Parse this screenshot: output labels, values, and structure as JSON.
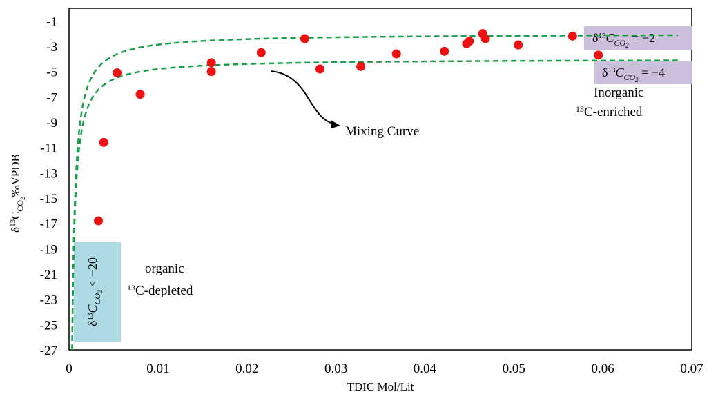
{
  "chart_data": {
    "type": "scatter",
    "xlabel": "TDIC Mol/Lit",
    "ylabel": "δ13CCO2‰VPDB",
    "ylabel_parts": {
      "delta": "δ",
      "mass": "13",
      "c": "C",
      "sub": "CO",
      "sub2": "2",
      "unit": "‰VPDB"
    },
    "xlim": [
      0,
      0.07
    ],
    "ylim": [
      -27,
      0
    ],
    "x_ticks": [
      0,
      0.01,
      0.02,
      0.03,
      0.04,
      0.05,
      0.06,
      0.07
    ],
    "x_tick_labels": [
      "0",
      "0.01",
      "0.02",
      "0.03",
      "0.04",
      "0.05",
      "0.06",
      "0.07"
    ],
    "y_ticks": [
      -1,
      -3,
      -5,
      -7,
      -9,
      -11,
      -13,
      -15,
      -17,
      -19,
      -21,
      -23,
      -25,
      -27
    ],
    "y_tick_labels": [
      "-1",
      "-3",
      "-5",
      "-7",
      "-9",
      "-11",
      "-13",
      "-15",
      "-17",
      "-19",
      "-21",
      "-23",
      "-25",
      "-27"
    ],
    "grid": false,
    "points": {
      "color": "#ee1111",
      "x": [
        0.0033,
        0.0039,
        0.0054,
        0.008,
        0.016,
        0.016,
        0.0216,
        0.0265,
        0.0282,
        0.0328,
        0.0368,
        0.0422,
        0.0447,
        0.045,
        0.0465,
        0.0468,
        0.0505,
        0.0566,
        0.0595
      ],
      "y": [
        -16.8,
        -10.6,
        -5.1,
        -6.8,
        -4.3,
        -5.0,
        -3.5,
        -2.4,
        -4.8,
        -4.6,
        -3.6,
        -3.4,
        -2.8,
        -2.6,
        -2.0,
        -2.4,
        -2.9,
        -2.2,
        -3.7
      ]
    },
    "curves": [
      {
        "color": "#1aa04a",
        "end_value": -2,
        "mixing": {
          "c1": 0.00035,
          "d1": -27
        }
      },
      {
        "color": "#1aa04a",
        "end_value": -4,
        "mixing": {
          "c1": 0.00035,
          "d1": -27
        }
      }
    ],
    "annotations": {
      "mixing_curve": "Mixing Curve",
      "inorganic_line1": "Inorganic",
      "inorganic_mass": "13",
      "inorganic_line2": "C-enriched",
      "organic_line1": "organic",
      "organic_mass": "13",
      "organic_line2": "C-depleted"
    },
    "boxes": {
      "minus2": {
        "delta": "δ",
        "mass": "13",
        "c": "C",
        "sub": "CO",
        "sub2": "2",
        "rest": " = −2",
        "color": "#cbbfdc"
      },
      "minus4": {
        "delta": "δ",
        "mass": "13",
        "c": "C",
        "sub": "CO",
        "sub2": "2",
        "rest": " = −4",
        "color": "#cbbfdc"
      },
      "minus20": {
        "delta": "δ",
        "mass": "13",
        "c": "C",
        "sub": "CO",
        "sub2": "2",
        "rest": " < −20",
        "color": "#aedbe3"
      }
    },
    "arrow_color": "#000000"
  }
}
